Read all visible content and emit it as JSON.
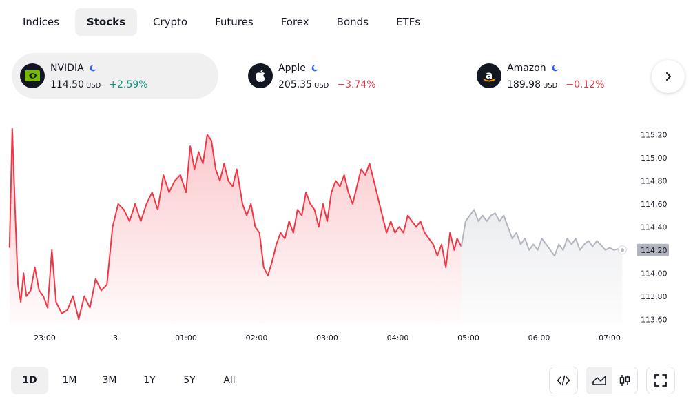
{
  "tabs": [
    {
      "label": "Indices",
      "active": false
    },
    {
      "label": "Stocks",
      "active": true
    },
    {
      "label": "Crypto",
      "active": false
    },
    {
      "label": "Futures",
      "active": false
    },
    {
      "label": "Forex",
      "active": false
    },
    {
      "label": "Bonds",
      "active": false
    },
    {
      "label": "ETFs",
      "active": false
    }
  ],
  "tickers": [
    {
      "name": "NVIDIA",
      "price": "114.50",
      "currency": "USD",
      "change": "+2.59%",
      "direction": "up",
      "icon": "nvidia-logo",
      "active": true
    },
    {
      "name": "Apple",
      "price": "205.35",
      "currency": "USD",
      "change": "−3.74%",
      "direction": "down",
      "icon": "apple-logo",
      "active": false
    },
    {
      "name": "Amazon",
      "price": "189.98",
      "currency": "USD",
      "change": "−0.12%",
      "direction": "down",
      "icon": "amazon-logo",
      "active": false
    }
  ],
  "colors": {
    "up": "#089981",
    "down": "#e03b4c",
    "line": "#f23645",
    "after_hours": "#b2b5be",
    "market_closed_icon": "#2962ff"
  },
  "chart_data": {
    "type": "line",
    "y_ticks": [
      "115.20",
      "115.00",
      "114.80",
      "114.60",
      "114.40",
      "114.20",
      "114.00",
      "113.80",
      "113.60"
    ],
    "ylim": [
      113.56,
      115.28
    ],
    "last_price_label": "114.20",
    "x_ticks": [
      "23:00",
      "3",
      "01:00",
      "02:00",
      "03:00",
      "04:00",
      "05:00",
      "06:00",
      "07:00"
    ],
    "series": [
      {
        "session": "regular",
        "points": [
          [
            22.5,
            114.22
          ],
          [
            22.54,
            115.25
          ],
          [
            22.58,
            114.55
          ],
          [
            22.62,
            113.9
          ],
          [
            22.66,
            113.75
          ],
          [
            22.7,
            114.0
          ],
          [
            22.74,
            113.8
          ],
          [
            22.8,
            113.85
          ],
          [
            22.86,
            114.05
          ],
          [
            22.92,
            113.85
          ],
          [
            22.98,
            113.8
          ],
          [
            23.04,
            113.7
          ],
          [
            23.1,
            114.2
          ],
          [
            23.16,
            113.75
          ],
          [
            23.24,
            113.65
          ],
          [
            23.32,
            113.68
          ],
          [
            23.4,
            113.8
          ],
          [
            23.48,
            113.6
          ],
          [
            23.56,
            113.8
          ],
          [
            23.64,
            113.7
          ],
          [
            23.72,
            113.95
          ],
          [
            23.8,
            113.85
          ],
          [
            23.88,
            113.9
          ],
          [
            23.96,
            114.4
          ],
          [
            24.04,
            114.6
          ],
          [
            24.12,
            114.55
          ],
          [
            24.2,
            114.45
          ],
          [
            24.28,
            114.6
          ],
          [
            24.36,
            114.45
          ],
          [
            24.44,
            114.6
          ],
          [
            24.52,
            114.7
          ],
          [
            24.6,
            114.55
          ],
          [
            24.68,
            114.85
          ],
          [
            24.76,
            114.7
          ],
          [
            24.84,
            114.8
          ],
          [
            24.92,
            114.85
          ],
          [
            25.0,
            114.7
          ],
          [
            25.06,
            115.1
          ],
          [
            25.12,
            114.9
          ],
          [
            25.18,
            115.05
          ],
          [
            25.24,
            114.95
          ],
          [
            25.3,
            115.2
          ],
          [
            25.36,
            115.15
          ],
          [
            25.42,
            114.9
          ],
          [
            25.48,
            114.8
          ],
          [
            25.54,
            114.95
          ],
          [
            25.6,
            114.8
          ],
          [
            25.66,
            114.75
          ],
          [
            25.72,
            114.9
          ],
          [
            25.8,
            114.6
          ],
          [
            25.86,
            114.5
          ],
          [
            25.92,
            114.6
          ],
          [
            25.98,
            114.4
          ],
          [
            26.04,
            114.35
          ],
          [
            26.1,
            114.05
          ],
          [
            26.16,
            113.98
          ],
          [
            26.22,
            114.1
          ],
          [
            26.28,
            114.25
          ],
          [
            26.34,
            114.35
          ],
          [
            26.4,
            114.3
          ],
          [
            26.46,
            114.45
          ],
          [
            26.52,
            114.35
          ],
          [
            26.58,
            114.55
          ],
          [
            26.64,
            114.5
          ],
          [
            26.7,
            114.7
          ],
          [
            26.76,
            114.6
          ],
          [
            26.82,
            114.55
          ],
          [
            26.88,
            114.4
          ],
          [
            26.94,
            114.6
          ],
          [
            27.0,
            114.45
          ],
          [
            27.06,
            114.7
          ],
          [
            27.12,
            114.8
          ],
          [
            27.18,
            114.75
          ],
          [
            27.24,
            114.85
          ],
          [
            27.3,
            114.7
          ],
          [
            27.36,
            114.6
          ],
          [
            27.42,
            114.75
          ],
          [
            27.48,
            114.9
          ],
          [
            27.54,
            114.85
          ],
          [
            27.6,
            114.95
          ],
          [
            27.66,
            114.8
          ],
          [
            27.72,
            114.65
          ],
          [
            27.78,
            114.5
          ],
          [
            27.84,
            114.35
          ],
          [
            27.9,
            114.45
          ],
          [
            27.96,
            114.35
          ],
          [
            28.02,
            114.4
          ],
          [
            28.08,
            114.35
          ],
          [
            28.14,
            114.5
          ],
          [
            28.2,
            114.45
          ],
          [
            28.26,
            114.4
          ],
          [
            28.32,
            114.45
          ],
          [
            28.38,
            114.35
          ],
          [
            28.44,
            114.3
          ],
          [
            28.5,
            114.25
          ],
          [
            28.56,
            114.15
          ],
          [
            28.62,
            114.25
          ],
          [
            28.68,
            114.05
          ],
          [
            28.74,
            114.35
          ],
          [
            28.8,
            114.2
          ],
          [
            28.84,
            114.3
          ],
          [
            28.9,
            114.23
          ]
        ]
      },
      {
        "session": "extended",
        "points": [
          [
            28.9,
            114.23
          ],
          [
            28.96,
            114.45
          ],
          [
            29.02,
            114.5
          ],
          [
            29.08,
            114.55
          ],
          [
            29.14,
            114.45
          ],
          [
            29.2,
            114.5
          ],
          [
            29.26,
            114.45
          ],
          [
            29.32,
            114.5
          ],
          [
            29.38,
            114.52
          ],
          [
            29.44,
            114.45
          ],
          [
            29.5,
            114.5
          ],
          [
            29.56,
            114.4
          ],
          [
            29.62,
            114.3
          ],
          [
            29.68,
            114.35
          ],
          [
            29.74,
            114.25
          ],
          [
            29.8,
            114.3
          ],
          [
            29.86,
            114.2
          ],
          [
            29.92,
            114.25
          ],
          [
            29.98,
            114.2
          ],
          [
            30.04,
            114.3
          ],
          [
            30.1,
            114.25
          ],
          [
            30.16,
            114.2
          ],
          [
            30.22,
            114.15
          ],
          [
            30.28,
            114.25
          ],
          [
            30.34,
            114.2
          ],
          [
            30.4,
            114.3
          ],
          [
            30.46,
            114.25
          ],
          [
            30.52,
            114.3
          ],
          [
            30.58,
            114.2
          ],
          [
            30.64,
            114.25
          ],
          [
            30.7,
            114.28
          ],
          [
            30.76,
            114.23
          ],
          [
            30.82,
            114.28
          ],
          [
            30.88,
            114.24
          ],
          [
            30.94,
            114.2
          ],
          [
            31.0,
            114.22
          ],
          [
            31.06,
            114.2
          ],
          [
            31.12,
            114.21
          ],
          [
            31.18,
            114.2
          ]
        ]
      }
    ]
  },
  "ranges": [
    {
      "label": "1D",
      "active": true
    },
    {
      "label": "1M",
      "active": false
    },
    {
      "label": "3M",
      "active": false
    },
    {
      "label": "1Y",
      "active": false
    },
    {
      "label": "5Y",
      "active": false
    },
    {
      "label": "All",
      "active": false
    }
  ],
  "toolbar": {
    "embed_icon": "code-icon",
    "area_icon": "area-chart-icon",
    "candles_icon": "candlestick-icon",
    "fullscreen_icon": "fullscreen-icon"
  }
}
